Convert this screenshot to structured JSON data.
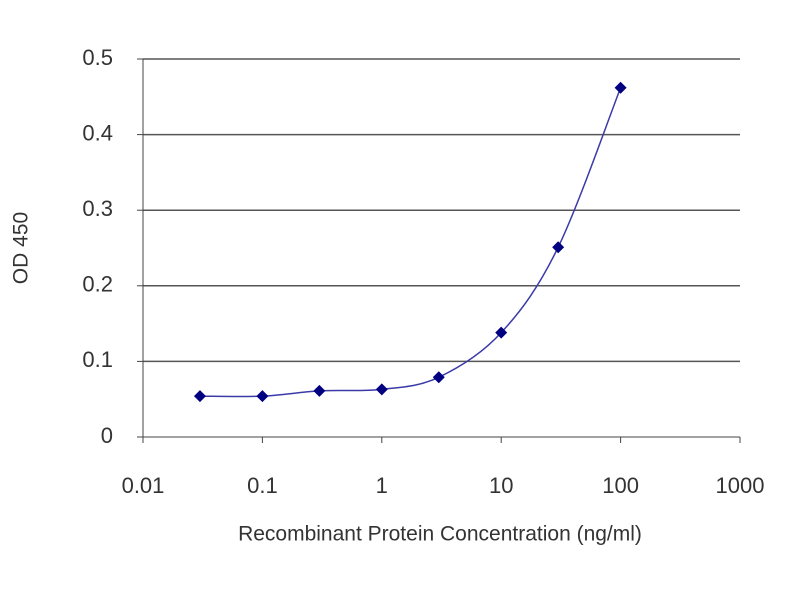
{
  "chart_data": {
    "type": "line",
    "x_label": "Recombinant Protein Concentration (ng/ml)",
    "y_label": "OD 450",
    "x": [
      0.03,
      0.1,
      0.3,
      1,
      3,
      10,
      30,
      100
    ],
    "series": [
      {
        "color": "#000080",
        "line_color": "#3a3aa8",
        "values": [
          0.054,
          0.054,
          0.061,
          0.063,
          0.079,
          0.138,
          0.251,
          0.462
        ]
      }
    ],
    "xscale": "log",
    "xlim": [
      0.01,
      1000
    ],
    "xticks": [
      0.01,
      0.1,
      1,
      10,
      100,
      1000
    ],
    "ylim": [
      0,
      0.5
    ],
    "yticks": [
      0,
      0.1,
      0.2,
      0.3,
      0.4,
      0.5
    ],
    "grid": true
  }
}
